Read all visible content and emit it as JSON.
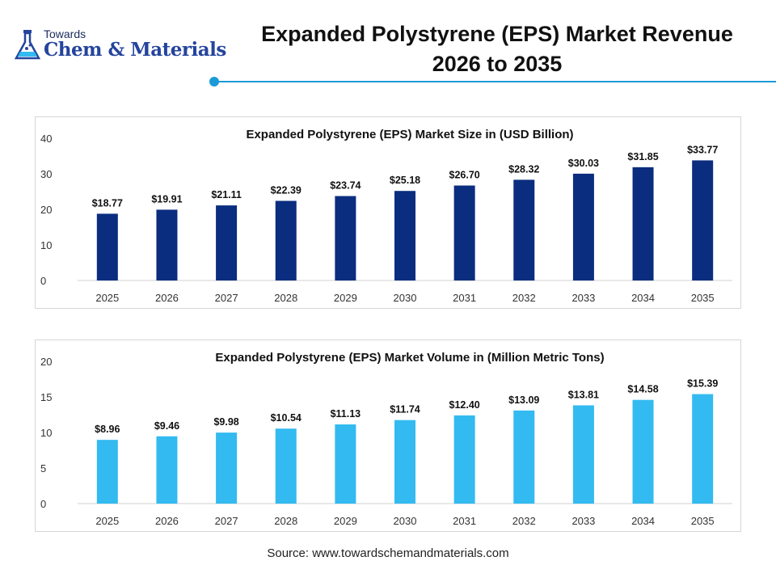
{
  "logo": {
    "top_text": "Towards",
    "main_text": "Chem & Materials"
  },
  "title": {
    "line1": "Expanded Polystyrene (EPS) Market Revenue",
    "line2": "2026 to 2035"
  },
  "source": "Source: www.towardschemandmaterials.com",
  "colors": {
    "accent": "#1a9ad6",
    "revenue_bars": "#0a2d7f",
    "volume_bars": "#33baf0"
  },
  "chart_data": [
    {
      "type": "bar",
      "title": "Expanded Polystyrene (EPS) Market Size in (USD Billion)",
      "categories": [
        "2025",
        "2026",
        "2027",
        "2028",
        "2029",
        "2030",
        "2031",
        "2032",
        "2033",
        "2034",
        "2035"
      ],
      "values": [
        18.77,
        19.91,
        21.11,
        22.39,
        23.74,
        25.18,
        26.7,
        28.32,
        30.03,
        31.85,
        33.77
      ],
      "data_labels": [
        "$18.77",
        "$19.91",
        "$21.11",
        "$22.39",
        "$23.74",
        "$25.18",
        "$26.70",
        "$28.32",
        "$30.03",
        "$31.85",
        "$33.77"
      ],
      "ylim": [
        0,
        40
      ],
      "yticks": [
        "0",
        "10",
        "20",
        "30",
        "40"
      ],
      "grid": false,
      "color": "#0a2d7f"
    },
    {
      "type": "bar",
      "title": "Expanded Polystyrene (EPS) Market Volume in (Million Metric Tons)",
      "categories": [
        "2025",
        "2026",
        "2027",
        "2028",
        "2029",
        "2030",
        "2031",
        "2032",
        "2033",
        "2034",
        "2035"
      ],
      "values": [
        8.96,
        9.46,
        9.98,
        10.54,
        11.13,
        11.74,
        12.4,
        13.09,
        13.81,
        14.58,
        15.39
      ],
      "data_labels": [
        "$8.96",
        "$9.46",
        "$9.98",
        "$10.54",
        "$11.13",
        "$11.74",
        "$12.40",
        "$13.09",
        "$13.81",
        "$14.58",
        "$15.39"
      ],
      "ylim": [
        0,
        20
      ],
      "yticks": [
        "0",
        "5",
        "10",
        "15",
        "20"
      ],
      "grid": false,
      "color": "#33baf0"
    }
  ]
}
